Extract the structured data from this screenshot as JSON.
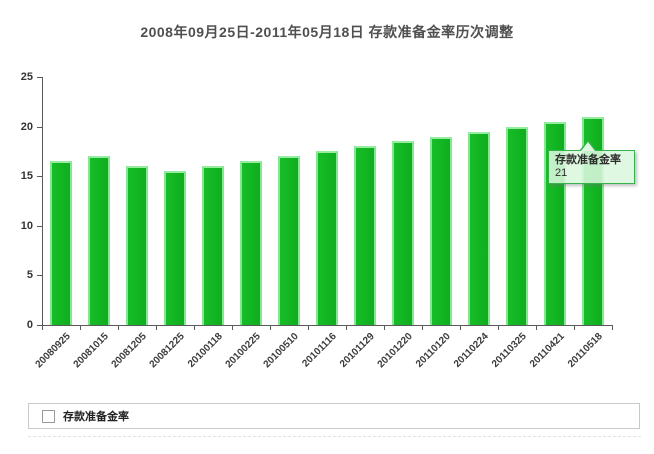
{
  "title": "2008年09月25日-2011年05月18日 存款准备金率历次调整",
  "tooltip": {
    "series": "存款准备金率",
    "value": "21"
  },
  "legend": {
    "label": "存款准备金率",
    "swatch_color": "#14b826"
  },
  "colors": {
    "bar": "#14b826",
    "bar_highlight": "#8ce898",
    "axis": "#5a5a5a",
    "tooltip_background": "#ddf8e0",
    "tooltip_border": "#35b24a"
  },
  "chart_data": {
    "type": "bar",
    "title": "2008年09月25日-2011年05月18日 存款准备金率历次调整",
    "categories": [
      "20080925",
      "20081015",
      "20081205",
      "20081225",
      "20100118",
      "20100225",
      "20100510",
      "20101116",
      "20101129",
      "20101220",
      "20110120",
      "20110224",
      "20110325",
      "20110421",
      "20110518"
    ],
    "series": [
      {
        "name": "存款准备金率",
        "values": [
          16.5,
          17,
          16,
          15.5,
          16,
          16.5,
          17,
          17.5,
          18,
          18.5,
          19,
          19.5,
          20,
          20.5,
          21
        ]
      }
    ],
    "xlabel": "",
    "ylabel": "",
    "ylim": [
      0,
      25
    ],
    "yticks": [
      0,
      5,
      10,
      15,
      20,
      25
    ],
    "grid": false,
    "legend_position": "bottom",
    "bar_color": "#14b826"
  }
}
